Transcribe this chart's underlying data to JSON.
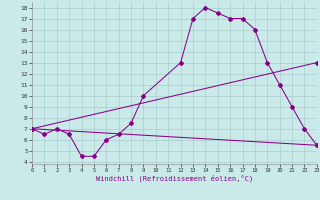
{
  "xlabel": "Windchill (Refroidissement éolien,°C)",
  "background_color": "#caeaea",
  "grid_color": "#aacccc",
  "line_color": "#880088",
  "x_ticks": [
    0,
    1,
    2,
    3,
    4,
    5,
    6,
    7,
    8,
    9,
    10,
    11,
    12,
    13,
    14,
    15,
    16,
    17,
    18,
    19,
    20,
    21,
    22,
    23
  ],
  "y_ticks": [
    4,
    5,
    6,
    7,
    8,
    9,
    10,
    11,
    12,
    13,
    14,
    15,
    16,
    17,
    18
  ],
  "xlim": [
    0,
    23
  ],
  "ylim": [
    3.8,
    18.5
  ],
  "curve1_x": [
    0,
    1,
    2,
    3,
    4,
    5,
    6,
    7,
    8,
    9,
    12,
    13,
    14,
    15,
    16,
    17,
    18,
    19,
    20,
    21,
    22,
    23
  ],
  "curve1_y": [
    7.0,
    6.5,
    7.0,
    6.5,
    4.5,
    4.5,
    6.0,
    6.5,
    7.5,
    10.0,
    13.0,
    17.0,
    18.0,
    17.5,
    17.0,
    17.0,
    16.0,
    13.0,
    11.0,
    9.0,
    7.0,
    5.5
  ],
  "curve2_x": [
    0,
    23
  ],
  "curve2_y": [
    7.0,
    13.0
  ],
  "curve3_x": [
    0,
    23
  ],
  "curve3_y": [
    7.0,
    5.5
  ]
}
